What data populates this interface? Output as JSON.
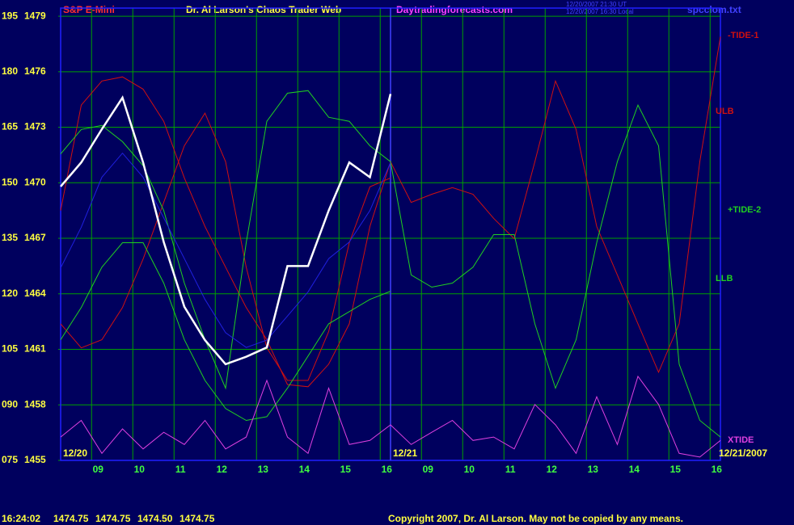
{
  "chart_data": {
    "type": "line",
    "title": "Dr. Al Larson's Chaos Trader Web",
    "header_left": "S&P E-Mini",
    "header_site": "Daytradingforecasts.com",
    "header_time_ut": "12/20/2007 21:30 UT",
    "header_time_local": "12/20/2007 16:30 Local",
    "header_file": "spcclom.txt",
    "footer_time": "16:24:02",
    "footer_quotes": [
      "1474.75",
      "1474.75",
      "1474.50",
      "1474.75"
    ],
    "copyright": "Copyright 2007, Dr. Al Larson. May not be copied by any means.",
    "annotations": [
      {
        "text": "12/20",
        "x": 0
      },
      {
        "text": "12/21",
        "x": 8
      },
      {
        "text": "12/21/2007",
        "x": 16
      }
    ],
    "x": [
      0,
      0.5,
      1,
      1.5,
      2,
      2.5,
      3,
      3.5,
      4,
      4.5,
      5,
      5.5,
      6,
      6.5,
      7,
      7.5,
      8,
      8.5,
      9,
      9.5,
      10,
      10.5,
      11,
      11.5,
      12,
      12.5,
      13,
      13.5,
      14,
      14.5,
      15,
      15.5,
      16
    ],
    "xlim": [
      0,
      16
    ],
    "xticks": [
      {
        "value": 0.75,
        "label": "09"
      },
      {
        "value": 1.75,
        "label": "10"
      },
      {
        "value": 2.75,
        "label": "11"
      },
      {
        "value": 3.75,
        "label": "12"
      },
      {
        "value": 4.75,
        "label": "13"
      },
      {
        "value": 5.75,
        "label": "14"
      },
      {
        "value": 6.75,
        "label": "15"
      },
      {
        "value": 7.75,
        "label": "16"
      },
      {
        "value": 8.75,
        "label": "09"
      },
      {
        "value": 9.75,
        "label": "10"
      },
      {
        "value": 10.75,
        "label": "11"
      },
      {
        "value": 11.75,
        "label": "12"
      },
      {
        "value": 12.75,
        "label": "13"
      },
      {
        "value": 13.75,
        "label": "14"
      },
      {
        "value": 14.75,
        "label": "15"
      },
      {
        "value": 15.75,
        "label": "16"
      }
    ],
    "ylim": [
      75,
      197.2
    ],
    "yticks": [
      {
        "value": 75,
        "label": "075"
      },
      {
        "value": 90,
        "label": "090"
      },
      105,
      120,
      135,
      150,
      165,
      180,
      195
    ],
    "y2lim": [
      1455,
      1479.44
    ],
    "y2ticks": [
      1455,
      1458,
      1461,
      1464,
      1467,
      1470,
      1473,
      1476,
      1479
    ],
    "grid": true,
    "series": [
      {
        "name": "-TIDE-1",
        "color": "#d01010",
        "values": [
          142.5,
          171,
          177.5,
          178.6,
          175.3,
          166.6,
          151.3,
          138.2,
          127.2,
          116.3,
          107.6,
          95.5,
          94.9,
          101,
          111.9,
          138.2,
          155.7,
          144.7,
          146.9,
          148.7,
          146.9,
          140.4,
          134.9,
          155.7,
          177.5,
          164.4,
          138.2,
          125.1,
          111.9,
          98.8,
          111.9,
          155.7,
          189.5
        ]
      },
      {
        "name": "ULB",
        "color": "#d01010",
        "values": [
          111.9,
          105.4,
          107.6,
          116.3,
          129.4,
          144.7,
          160,
          168.8,
          155.7,
          127.2,
          105.4,
          96.6,
          96.6,
          109.8,
          133.8,
          148.9,
          151.3,
          null,
          null,
          null,
          null,
          null,
          null,
          null,
          null,
          null,
          null,
          null,
          null,
          null,
          null,
          null,
          null
        ]
      },
      {
        "name": "+TIDE-2",
        "color": "#20d020",
        "values": [
          157.8,
          164.4,
          165.5,
          161.1,
          154.6,
          142.5,
          122.9,
          107.6,
          94.5,
          133.8,
          166.6,
          174.2,
          174.9,
          167.7,
          166.6,
          160,
          155.7,
          125.1,
          121.8,
          122.9,
          127.2,
          136,
          136,
          111.9,
          94.5,
          107.6,
          133.8,
          155.7,
          171,
          160,
          101,
          85.8,
          81.3
        ]
      },
      {
        "name": "LLB",
        "color": "#20d020",
        "values": [
          107.6,
          116.3,
          127.2,
          133.8,
          133.8,
          122.9,
          107.6,
          96.6,
          89,
          85.8,
          86.8,
          94.5,
          103.2,
          111.9,
          115.2,
          118.5,
          120.7,
          null,
          null,
          null,
          null,
          null,
          null,
          null,
          null,
          null,
          null,
          null,
          null,
          null,
          null,
          null,
          null
        ]
      },
      {
        "name": "XTIDE",
        "color": "#e040e0",
        "values": [
          81.3,
          85.8,
          76.9,
          83.5,
          78.1,
          82.6,
          79.3,
          85.8,
          78.1,
          81.3,
          96.6,
          81.3,
          76.9,
          94.5,
          79.3,
          80.4,
          84.6,
          79.3,
          82.6,
          85.8,
          80.4,
          81.3,
          78.1,
          90.1,
          84.6,
          76.9,
          92.2,
          79.3,
          97.7,
          90.1,
          76.9,
          75.9,
          80.4
        ]
      },
      {
        "color": "#2020e0",
        "axis": "y2",
        "values": [
          1465.4,
          1467.6,
          1470.3,
          1471.6,
          1470.3,
          1468.1,
          1465.9,
          1463.7,
          1461.9,
          1461.1,
          1461.5,
          1462.8,
          1464.1,
          1465.9,
          1466.8,
          1468.5,
          1471.1,
          null,
          null,
          null,
          null,
          null,
          null,
          null,
          null,
          null,
          null,
          null,
          null,
          null,
          null,
          null,
          null
        ]
      },
      {
        "color": "#ffffff",
        "axis": "y2",
        "values": [
          1469.8,
          1471.1,
          1472.9,
          1474.6,
          1471.1,
          1466.8,
          1463.3,
          1461.5,
          1460.2,
          1460.6,
          1461.1,
          1465.5,
          1465.5,
          1468.5,
          1471.1,
          1470.3,
          1474.8,
          null,
          null,
          null,
          null,
          null,
          null,
          null,
          null,
          null,
          null,
          null,
          null,
          null,
          null,
          null,
          null
        ]
      }
    ]
  }
}
